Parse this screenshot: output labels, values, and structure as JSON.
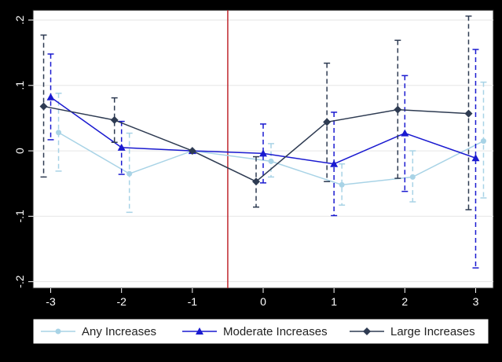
{
  "chart_data": {
    "type": "line",
    "title": "",
    "xlabel": "",
    "ylabel": "",
    "x": [
      -3,
      -2,
      -1,
      0,
      1,
      2,
      3
    ],
    "xticks": [
      "-3",
      "-2",
      "-1",
      "0",
      "1",
      "2",
      "3"
    ],
    "yticks": [
      {
        "value": 0.2,
        "label": ".2"
      },
      {
        "value": 0.1,
        "label": ".1"
      },
      {
        "value": 0,
        "label": "0"
      },
      {
        "value": -0.1,
        "label": "-.1"
      },
      {
        "value": -0.2,
        "label": "-.2"
      }
    ],
    "xlim": [
      -3.25,
      3.25
    ],
    "ylim": [
      -0.21,
      0.215
    ],
    "reference_line_x": -0.5,
    "grid": "horizontal",
    "legend_position": "bottom",
    "colors": {
      "frame": "#000000",
      "plot_background": "#ffffff",
      "grid": "#e6e6e6",
      "reference_line": "#c0282f"
    },
    "series": [
      {
        "name": "Any Increases",
        "color": "#a8d3e6",
        "marker": "circle",
        "values": [
          0.028,
          -0.035,
          0.0,
          -0.016,
          -0.052,
          -0.04,
          0.015
        ],
        "ci_low": [
          -0.031,
          -0.094,
          0.0,
          -0.04,
          -0.083,
          -0.078,
          -0.072
        ],
        "ci_high": [
          0.088,
          0.027,
          0.0,
          0.011,
          -0.02,
          0.0,
          0.105
        ]
      },
      {
        "name": "Moderate Increases",
        "color": "#1a1ad0",
        "marker": "triangle",
        "values": [
          0.082,
          0.005,
          0.0,
          -0.004,
          -0.02,
          0.027,
          -0.011
        ],
        "ci_low": [
          0.017,
          -0.036,
          0.0,
          -0.049,
          -0.099,
          -0.062,
          -0.179
        ],
        "ci_high": [
          0.148,
          0.045,
          0.0,
          0.041,
          0.059,
          0.115,
          0.155
        ]
      },
      {
        "name": "Large Increases",
        "color": "#2e3b52",
        "marker": "diamond",
        "values": [
          0.068,
          0.047,
          0.0,
          -0.047,
          0.044,
          0.063,
          0.057
        ],
        "ci_low": [
          -0.04,
          0.013,
          0.0,
          -0.086,
          -0.047,
          -0.042,
          -0.09
        ],
        "ci_high": [
          0.177,
          0.081,
          0.0,
          -0.009,
          0.134,
          0.169,
          0.206
        ]
      }
    ]
  }
}
